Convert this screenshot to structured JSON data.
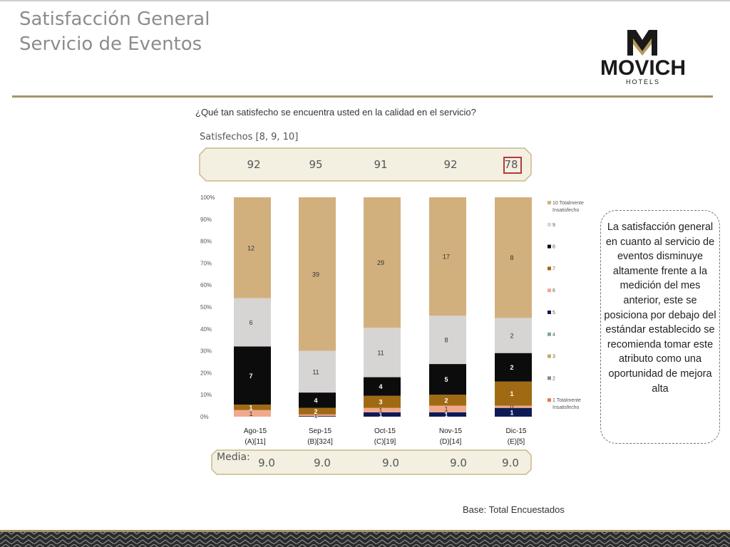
{
  "header": {
    "title_line1": "Satisfacción General",
    "title_line2": "Servicio de Eventos",
    "logo_name": "MOVICH",
    "logo_sub": "HOTELS"
  },
  "question": "¿Qué tan satisfecho se encuentra usted en la calidad en el servicio?",
  "satisfechos": {
    "label": "Satisfechos [8, 9, 10]",
    "values": [
      "92",
      "95",
      "91",
      "92",
      "78"
    ],
    "highlighted": "78"
  },
  "media": {
    "label": "Media:",
    "values": [
      "9.0",
      "9.0",
      "9.0",
      "9.0",
      "9.0"
    ]
  },
  "callout": "La satisfacción general en cuanto al servicio de eventos disminuye altamente frente a la medición del mes anterior, este se posiciona por debajo del estándar establecido se recomienda tomar este atributo como una oportunidad de mejora alta",
  "base_text": "Base: Total Encuestados",
  "colors": {
    "accent_rule": "#a59468",
    "band_fill": "#f3efe1",
    "band_border": "#c9b88a",
    "highlight_box": "#b43a3a"
  },
  "chart_data": {
    "type": "bar",
    "stacked": true,
    "percent_stacked": true,
    "categories": [
      "Ago-15",
      "Sep-15",
      "Oct-15",
      "Nov-15",
      "Dic-15"
    ],
    "category_sublabels": [
      "(A)[11]",
      "(B)[324]",
      "(C)[19]",
      "(D)[14]",
      "(E)[5]"
    ],
    "ytick_labels": [
      "0%",
      "10%",
      "20%",
      "30%",
      "40%",
      "50%",
      "60%",
      "70%",
      "80%",
      "90%",
      "100%"
    ],
    "ylim": [
      0,
      100
    ],
    "grid": false,
    "legend_position": "right",
    "series": [
      {
        "name": "1 Totalmente Insatisfecho",
        "color": "#e07b45",
        "values": [
          0,
          0,
          0,
          0,
          0
        ],
        "labels": [
          "",
          "",
          "",
          "",
          ""
        ]
      },
      {
        "name": "2",
        "color": "#8a8a8a",
        "values": [
          0,
          0,
          0,
          0,
          0
        ],
        "labels": [
          "",
          "",
          "",
          "",
          ""
        ]
      },
      {
        "name": "3",
        "color": "#c8a96c",
        "values": [
          0,
          0,
          0,
          0,
          0
        ],
        "labels": [
          "",
          "",
          "",
          "",
          ""
        ]
      },
      {
        "name": "4",
        "color": "#7da8a0",
        "values": [
          0,
          0,
          0,
          0,
          0
        ],
        "labels": [
          "",
          "",
          "",
          "",
          ""
        ]
      },
      {
        "name": "5",
        "color": "#0e1a55",
        "values": [
          0,
          0.3,
          2,
          2,
          4
        ],
        "labels": [
          "0",
          "0",
          "1",
          "1",
          "1"
        ]
      },
      {
        "name": "6",
        "color": "#f1a98d",
        "values": [
          3,
          0.7,
          2,
          3,
          1
        ],
        "labels": [
          "1",
          "1",
          "1",
          "1",
          "0"
        ]
      },
      {
        "name": "7",
        "color": "#a06a14",
        "values": [
          2.5,
          3,
          5.5,
          5,
          11
        ],
        "labels": [
          "1",
          "2",
          "3",
          "2",
          "1"
        ]
      },
      {
        "name": "8",
        "color": "#0c0c0c",
        "values": [
          26.5,
          7,
          8.5,
          14,
          13
        ],
        "labels": [
          "7",
          "4",
          "4",
          "5",
          "2"
        ]
      },
      {
        "name": "9",
        "color": "#d7d4d4",
        "values": [
          22,
          19,
          22.5,
          22,
          16
        ],
        "labels": [
          "6",
          "11",
          "11",
          "8",
          "2"
        ]
      },
      {
        "name": "10 Totalmente Insatisfecho",
        "color": "#d2b07e",
        "values": [
          46,
          70,
          59.5,
          54,
          55
        ],
        "labels": [
          "12",
          "39",
          "29",
          "17",
          "8"
        ]
      }
    ]
  }
}
